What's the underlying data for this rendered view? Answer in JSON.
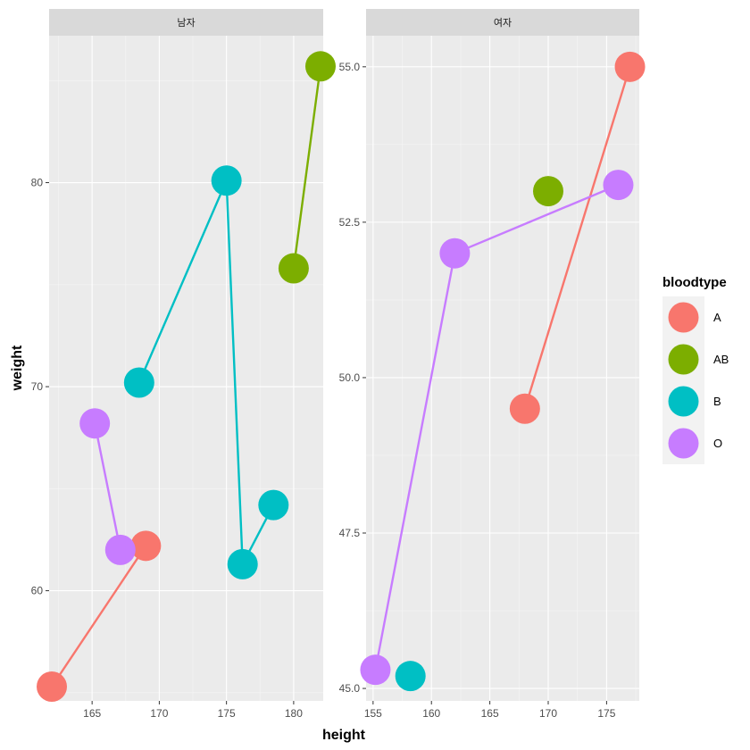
{
  "chart_data": {
    "type": "scatter",
    "subtype": "faceted scatter with lines (geom_point + geom_line), free scales",
    "xlabel": "height",
    "ylabel": "weight",
    "legend": {
      "title": "bloodtype",
      "position": "right",
      "entries": [
        {
          "label": "A",
          "color": "#F8766D"
        },
        {
          "label": "AB",
          "color": "#7CAE00"
        },
        {
          "label": "B",
          "color": "#00BFC4"
        },
        {
          "label": "O",
          "color": "#C77CFF"
        }
      ]
    },
    "panels": [
      {
        "strip": "남자",
        "xlim": [
          161.8,
          182.2
        ],
        "ylim": [
          54.6,
          87.2
        ],
        "xticks": [
          165,
          170,
          175,
          180
        ],
        "xtick_labels": [
          "165",
          "170",
          "175",
          "180"
        ],
        "yticks": [
          60,
          70,
          80
        ],
        "ytick_labels": [
          "60",
          "70",
          "80"
        ],
        "series": [
          {
            "name": "A",
            "x": [
              162,
              169
            ],
            "y": [
              55.3,
              62.2
            ]
          },
          {
            "name": "AB",
            "x": [
              180,
              182
            ],
            "y": [
              75.8,
              85.7
            ]
          },
          {
            "name": "B",
            "x": [
              168.5,
              175,
              176.2,
              178.5
            ],
            "y": [
              70.2,
              80.1,
              61.3,
              64.2
            ]
          },
          {
            "name": "O",
            "x": [
              165.2,
              167.1
            ],
            "y": [
              68.2,
              62
            ]
          }
        ]
      },
      {
        "strip": "여자",
        "xlim": [
          154.4,
          177.8
        ],
        "ylim": [
          44.8,
          55.5
        ],
        "xticks": [
          155,
          160,
          165,
          170,
          175
        ],
        "xtick_labels": [
          "155",
          "160",
          "165",
          "170",
          "175"
        ],
        "yticks": [
          45,
          47.5,
          50,
          52.5,
          55
        ],
        "ytick_labels": [
          "45.0",
          "47.5",
          "50.0",
          "52.5",
          "55.0"
        ],
        "series": [
          {
            "name": "A",
            "x": [
              168,
              177
            ],
            "y": [
              49.5,
              55
            ]
          },
          {
            "name": "AB",
            "x": [
              170
            ],
            "y": [
              53
            ]
          },
          {
            "name": "B",
            "x": [
              158.2
            ],
            "y": [
              45.2
            ]
          },
          {
            "name": "O",
            "x": [
              155.2,
              162,
              176
            ],
            "y": [
              45.3,
              52,
              53.1
            ]
          }
        ]
      }
    ]
  }
}
